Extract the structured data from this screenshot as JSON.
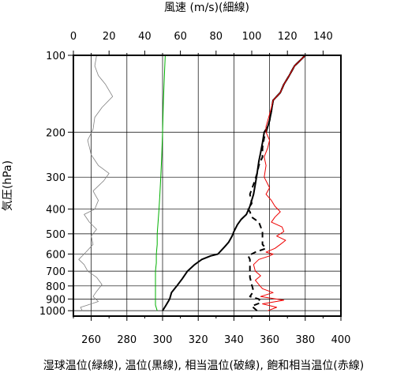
{
  "chart_data": {
    "type": "line",
    "title": "",
    "top_axis": {
      "label": "風速 (m/s)(細線)",
      "range": [
        0,
        150
      ],
      "ticks": [
        0,
        20,
        40,
        60,
        80,
        100,
        120,
        140
      ]
    },
    "bottom_axis": {
      "label": "湿球温位(緑線), 温位(黒線), 相当温位(破線), 飽和相当温位(赤線)",
      "range": [
        250,
        400
      ],
      "ticks": [
        260,
        280,
        300,
        320,
        340,
        360,
        380,
        400
      ]
    },
    "y_axis": {
      "label": "気圧(hPa)",
      "scale": "log",
      "inverted": true,
      "range": [
        1050,
        100
      ],
      "ticks": [
        100,
        200,
        300,
        400,
        500,
        600,
        700,
        800,
        900,
        1000
      ]
    },
    "grid": true,
    "series": [
      {
        "axis": "top",
        "color": "#808080",
        "style": "thin",
        "points": [
          [
            5,
            1000
          ],
          [
            4,
            970
          ],
          [
            8,
            950
          ],
          [
            14,
            920
          ],
          [
            11,
            880
          ],
          [
            13,
            840
          ],
          [
            16,
            790
          ],
          [
            13,
            740
          ],
          [
            8,
            700
          ],
          [
            6,
            660
          ],
          [
            3,
            630
          ],
          [
            7,
            590
          ],
          [
            11,
            550
          ],
          [
            10,
            510
          ],
          [
            13,
            480
          ],
          [
            9,
            450
          ],
          [
            6,
            420
          ],
          [
            12,
            400
          ],
          [
            14,
            370
          ],
          [
            11,
            340
          ],
          [
            17,
            310
          ],
          [
            20,
            290
          ],
          [
            14,
            270
          ],
          [
            10,
            245
          ],
          [
            8,
            215
          ],
          [
            11,
            195
          ],
          [
            12,
            175
          ],
          [
            16,
            160
          ],
          [
            22,
            145
          ],
          [
            18,
            130
          ],
          [
            14,
            120
          ],
          [
            12,
            110
          ],
          [
            13,
            100
          ]
        ]
      },
      {
        "axis": "bottom",
        "color": "#00b000",
        "style": "solid",
        "points": [
          [
            297,
            1000
          ],
          [
            296,
            950
          ],
          [
            296,
            900
          ],
          [
            296,
            850
          ],
          [
            296,
            800
          ],
          [
            296,
            750
          ],
          [
            296,
            700
          ],
          [
            296.5,
            650
          ],
          [
            296.5,
            600
          ],
          [
            297,
            550
          ],
          [
            297,
            500
          ],
          [
            297.5,
            450
          ],
          [
            298,
            400
          ],
          [
            298.5,
            350
          ],
          [
            299,
            300
          ],
          [
            299.5,
            250
          ],
          [
            300,
            200
          ],
          [
            300.5,
            150
          ],
          [
            301,
            120
          ],
          [
            301.5,
            100
          ]
        ]
      },
      {
        "axis": "bottom",
        "color": "#000000",
        "style": "solid",
        "points": [
          [
            300,
            1000
          ],
          [
            302,
            950
          ],
          [
            304,
            900
          ],
          [
            305,
            850
          ],
          [
            308,
            800
          ],
          [
            311,
            750
          ],
          [
            314,
            700
          ],
          [
            318,
            660
          ],
          [
            322,
            630
          ],
          [
            327,
            610
          ],
          [
            331,
            600
          ],
          [
            333,
            580
          ],
          [
            335,
            560
          ],
          [
            337,
            540
          ],
          [
            339,
            510
          ],
          [
            340,
            490
          ],
          [
            342,
            460
          ],
          [
            344,
            440
          ],
          [
            347,
            420
          ],
          [
            349,
            390
          ],
          [
            351,
            350
          ],
          [
            352,
            320
          ],
          [
            353,
            290
          ],
          [
            354,
            260
          ],
          [
            355,
            240
          ],
          [
            356,
            220
          ],
          [
            357,
            200
          ],
          [
            359,
            190
          ],
          [
            360,
            180
          ],
          [
            361,
            165
          ],
          [
            362,
            150
          ],
          [
            364,
            145
          ],
          [
            366,
            140
          ],
          [
            368,
            130
          ],
          [
            371,
            120
          ],
          [
            374,
            110
          ],
          [
            377,
            105
          ],
          [
            380,
            100
          ]
        ]
      },
      {
        "axis": "bottom",
        "color": "#000000",
        "style": "dashed",
        "points": [
          [
            353,
            1000
          ],
          [
            350,
            960
          ],
          [
            355,
            930
          ],
          [
            354,
            900
          ],
          [
            349,
            880
          ],
          [
            351,
            840
          ],
          [
            350,
            790
          ],
          [
            349,
            740
          ],
          [
            349,
            700
          ],
          [
            349,
            660
          ],
          [
            349,
            630
          ],
          [
            348,
            610
          ],
          [
            352,
            590
          ],
          [
            358,
            570
          ],
          [
            356,
            550
          ],
          [
            356,
            520
          ],
          [
            356,
            490
          ],
          [
            354,
            450
          ],
          [
            350,
            430
          ],
          [
            349,
            410
          ],
          [
            348,
            400
          ],
          [
            350,
            380
          ],
          [
            349,
            350
          ],
          [
            351,
            320
          ],
          [
            353,
            290
          ],
          [
            354,
            270
          ],
          [
            356,
            250
          ],
          [
            356,
            230
          ],
          [
            357,
            210
          ],
          [
            358,
            200
          ],
          [
            359,
            190
          ],
          [
            360,
            180
          ],
          [
            361,
            165
          ],
          [
            362,
            150
          ],
          [
            364,
            145
          ],
          [
            366,
            140
          ],
          [
            368,
            130
          ],
          [
            371,
            120
          ],
          [
            374,
            110
          ],
          [
            377,
            105
          ],
          [
            380,
            100
          ]
        ]
      },
      {
        "axis": "bottom",
        "color": "#ee0000",
        "style": "solid",
        "points": [
          [
            359,
            1000
          ],
          [
            364,
            970
          ],
          [
            356,
            940
          ],
          [
            368,
            910
          ],
          [
            355,
            880
          ],
          [
            362,
            850
          ],
          [
            356,
            820
          ],
          [
            354,
            790
          ],
          [
            352,
            760
          ],
          [
            355,
            730
          ],
          [
            352,
            700
          ],
          [
            351,
            660
          ],
          [
            354,
            630
          ],
          [
            360,
            610
          ],
          [
            362,
            600
          ],
          [
            358,
            590
          ],
          [
            363,
            570
          ],
          [
            366,
            550
          ],
          [
            369,
            530
          ],
          [
            364,
            510
          ],
          [
            368,
            490
          ],
          [
            367,
            470
          ],
          [
            361,
            450
          ],
          [
            363,
            430
          ],
          [
            366,
            410
          ],
          [
            363,
            390
          ],
          [
            361,
            370
          ],
          [
            358,
            350
          ],
          [
            360,
            330
          ],
          [
            357,
            300
          ],
          [
            358,
            270
          ],
          [
            357,
            250
          ],
          [
            359,
            230
          ],
          [
            360,
            215
          ],
          [
            358,
            200
          ],
          [
            358,
            190
          ],
          [
            359,
            180
          ],
          [
            360,
            170
          ],
          [
            361,
            160
          ],
          [
            362,
            150
          ],
          [
            364,
            145
          ],
          [
            366,
            140
          ],
          [
            368,
            130
          ],
          [
            371,
            120
          ],
          [
            374,
            110
          ],
          [
            377,
            105
          ],
          [
            380,
            100
          ]
        ]
      }
    ]
  }
}
